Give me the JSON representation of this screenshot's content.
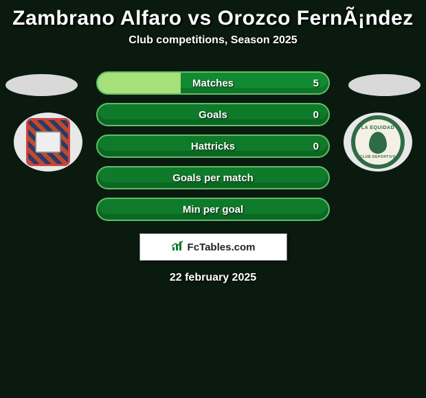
{
  "title": "Zambrano Alfaro vs Orozco FernÃ¡ndez",
  "subtitle": "Club competitions, Season 2025",
  "date": "22 february 2025",
  "footer_brand": "FcTables.com",
  "left_team": {
    "name": "Chico F.C.",
    "ring_color": "#e8e8e8"
  },
  "right_team": {
    "name": "La Equidad",
    "ring_color": "#e8e8e8",
    "text": "LA EQUIDAD",
    "subtext": "CLUB DEPORTIVO"
  },
  "stat_bars": [
    {
      "label": "Matches",
      "value": "5",
      "fill_pct": 36,
      "light": true
    },
    {
      "label": "Goals",
      "value": "0",
      "fill_pct": 0,
      "light": false
    },
    {
      "label": "Hattricks",
      "value": "0",
      "fill_pct": 0,
      "light": false
    },
    {
      "label": "Goals per match",
      "value": "",
      "fill_pct": 0,
      "light": false
    },
    {
      "label": "Min per goal",
      "value": "",
      "fill_pct": 0,
      "light": false
    }
  ],
  "colors": {
    "bg": "#0a1a0f",
    "bar_border": "#5fbf6a",
    "bar_bg": "#0f7a2a",
    "bar_fill": "#a6e07a",
    "text": "#ffffff"
  }
}
